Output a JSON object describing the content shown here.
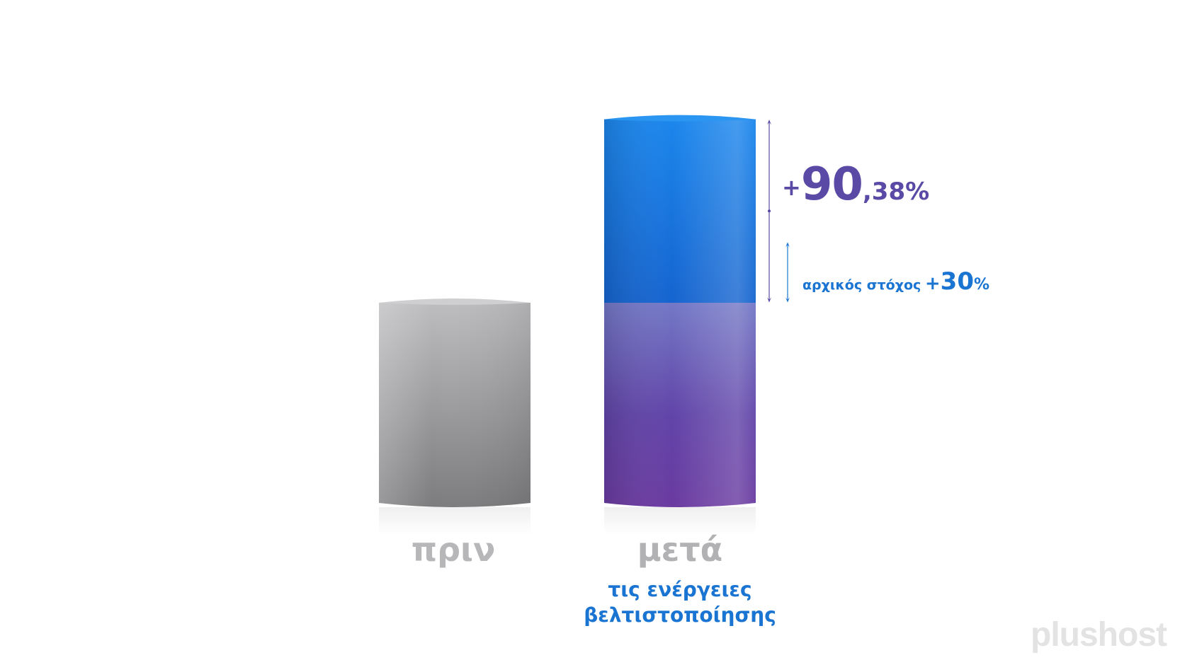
{
  "chart_data": {
    "type": "bar",
    "categories": [
      "πριν",
      "μετά"
    ],
    "category_subtitle": {
      "after": [
        "τις ενέργειες",
        "βελτιστοποίησης"
      ]
    },
    "series": [
      {
        "values": [
          100,
          190.38
        ]
      }
    ],
    "annotations": {
      "main": {
        "sign": "+",
        "integer": "90",
        "decimal": ",38%"
      },
      "target": {
        "text": "αρχικός στόχος",
        "sign": "+",
        "value": "30",
        "unit": "%",
        "value_num": 130
      }
    },
    "grid": true,
    "colors": {
      "before": "#9a9a9c",
      "after_top": "#1a84e8",
      "after_bottom": "#6a3aa0",
      "annotation_main": "#5a4aa6",
      "annotation_target": "#1a74d2"
    }
  },
  "logo": {
    "text": "plushost"
  }
}
